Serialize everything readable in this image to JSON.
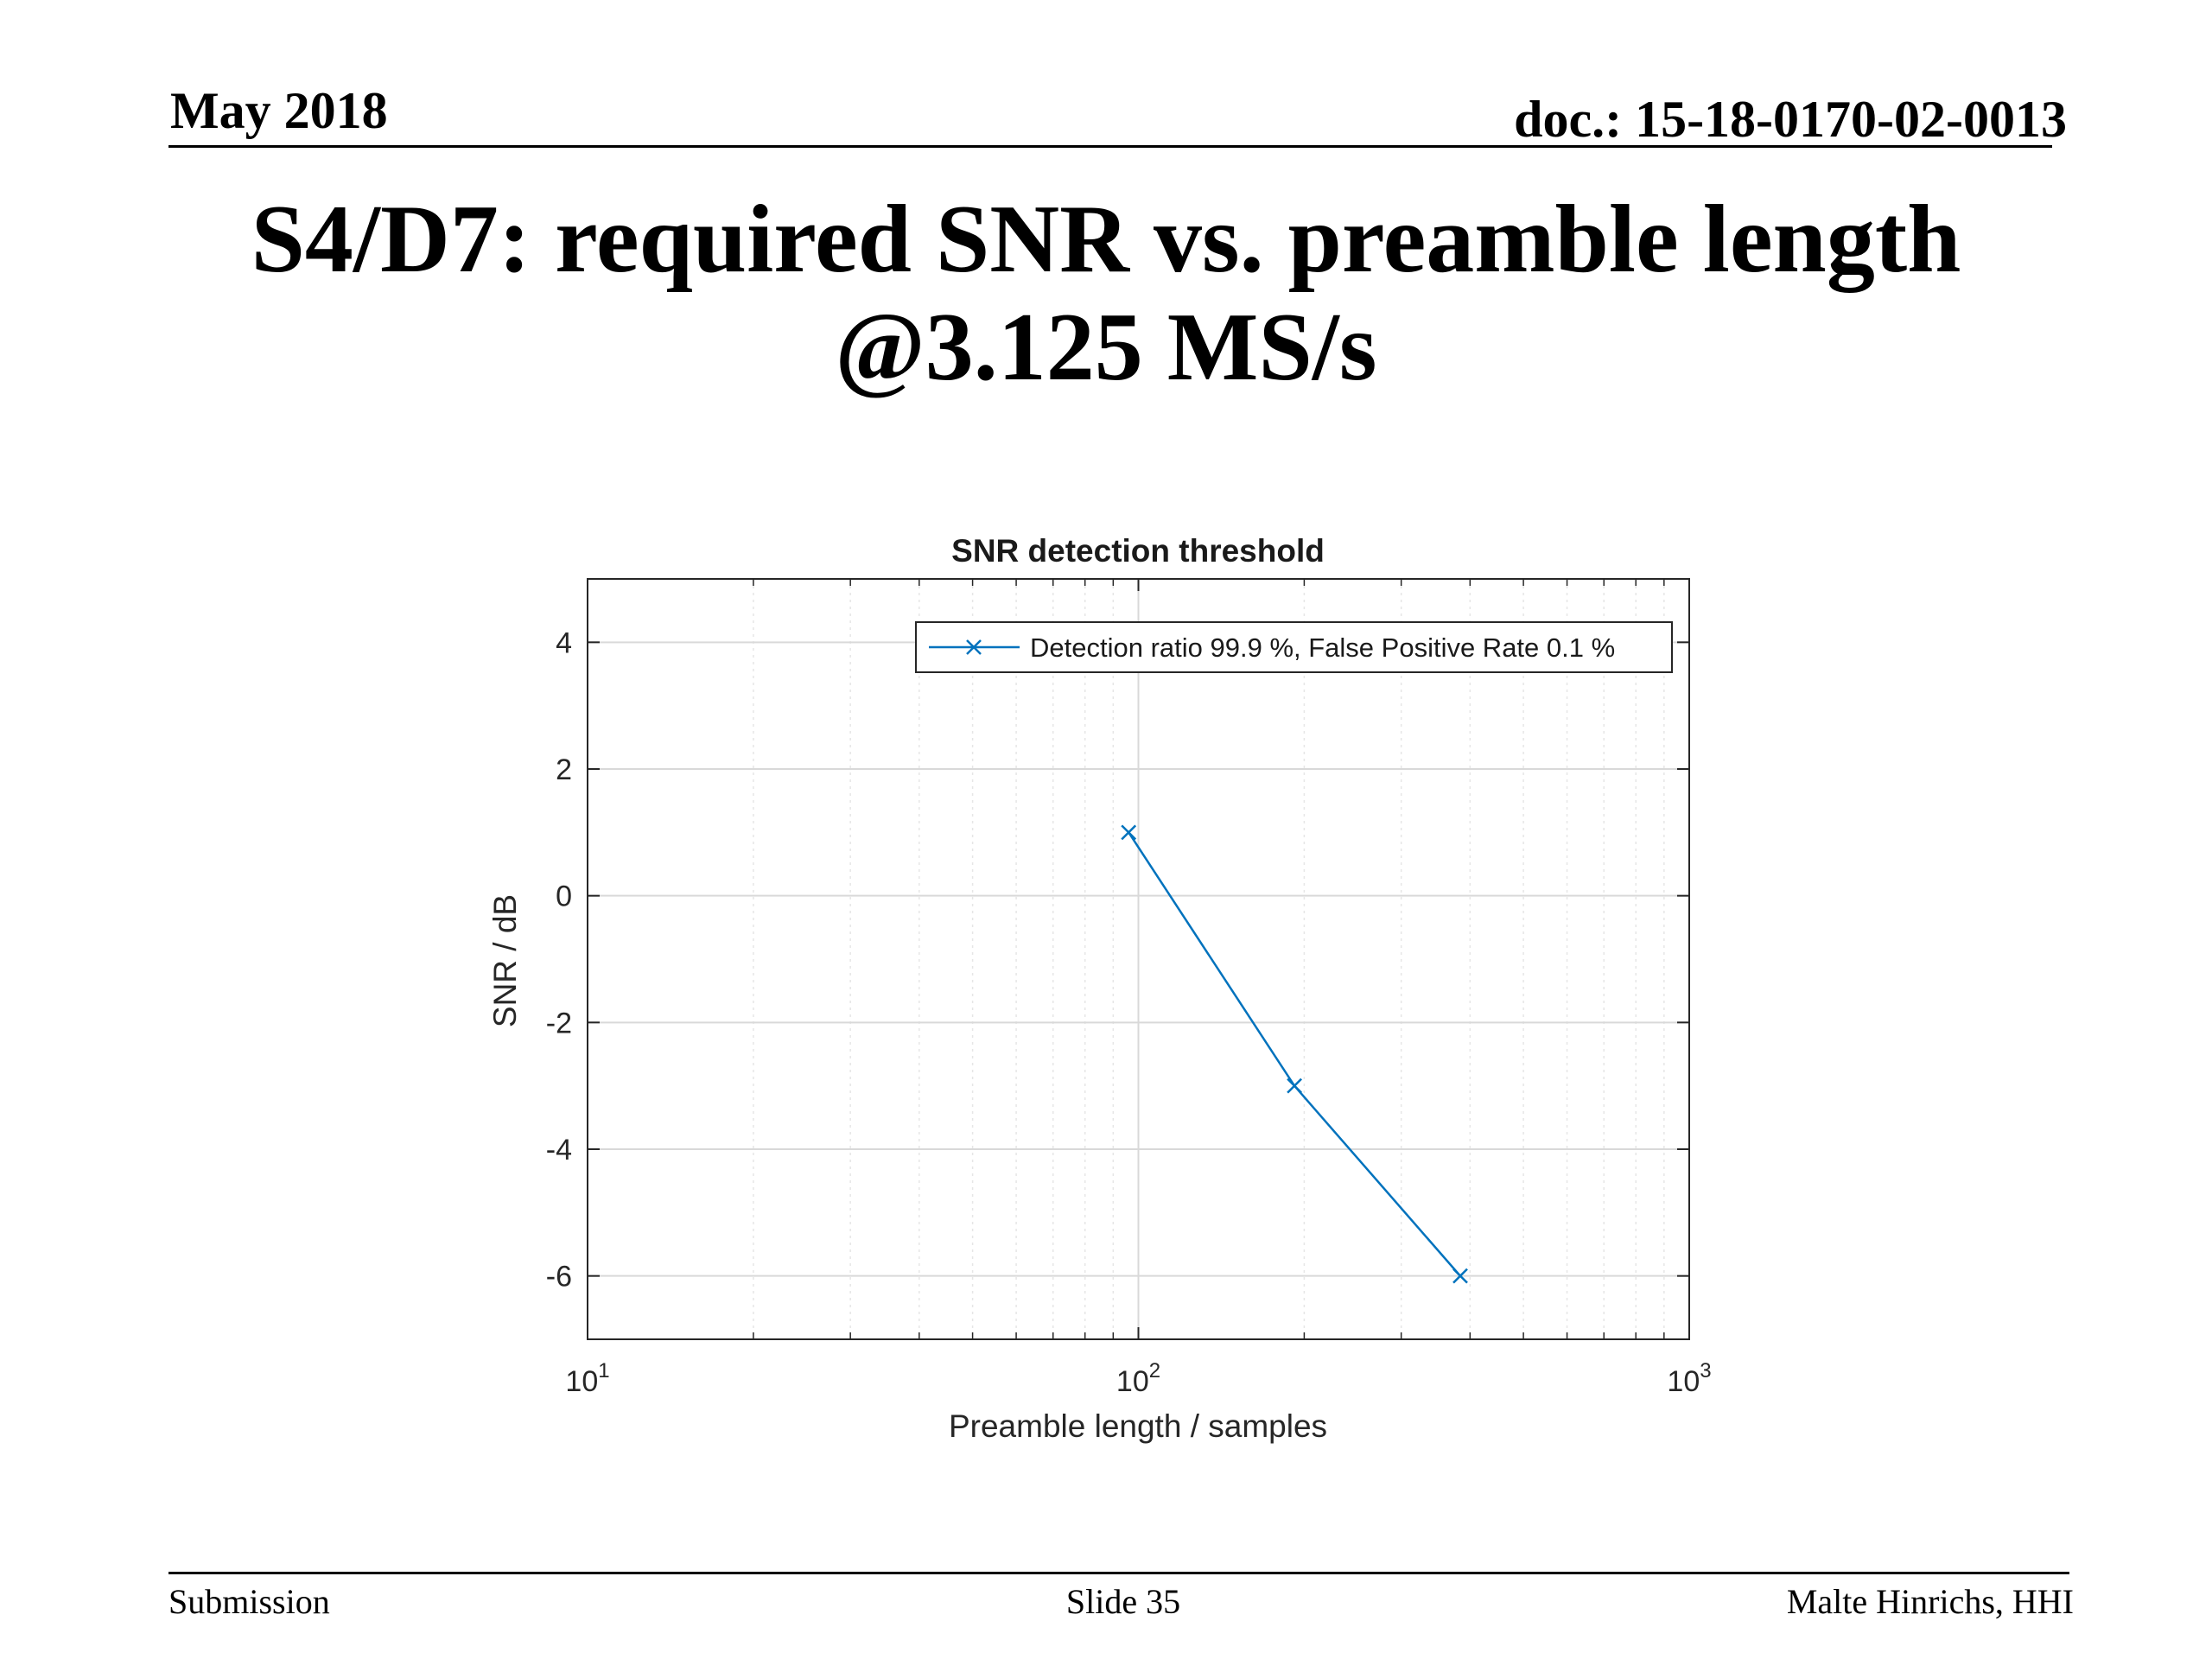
{
  "header": {
    "date": "May 2018",
    "doc": "doc.: 15-18-0170-02-0013"
  },
  "slide_title": "S4/D7: required SNR vs. preamble length @3.125 MS/s",
  "footer": {
    "left": "Submission",
    "center": "Slide 35",
    "right": "Malte Hinrichs, HHI"
  },
  "colors": {
    "series": "#0072BD",
    "grid_major": "#d9d9d9",
    "grid_minor": "#e6e6e6",
    "axes": "#262626",
    "text": "#262626"
  },
  "chart_data": {
    "type": "line",
    "title": "SNR detection threshold",
    "xlabel": "Preamble length / samples",
    "ylabel": "SNR / dB",
    "x_scale": "log",
    "xlim": [
      10,
      1000
    ],
    "ylim": [
      -7,
      5
    ],
    "x_ticks": [
      {
        "base": "10",
        "exp": "1",
        "value": 10
      },
      {
        "base": "10",
        "exp": "2",
        "value": 100
      },
      {
        "base": "10",
        "exp": "3",
        "value": 1000
      }
    ],
    "y_ticks": [
      {
        "value": 4,
        "label": "4"
      },
      {
        "value": 2,
        "label": "2"
      },
      {
        "value": 0,
        "label": "0"
      },
      {
        "value": -2,
        "label": "-2"
      },
      {
        "value": -4,
        "label": "-4"
      },
      {
        "value": -6,
        "label": "-6"
      }
    ],
    "grid": true,
    "minor_grid": true,
    "legend_position": "top-right",
    "series": [
      {
        "name": "Detection ratio 99.9 %, False Positive Rate 0.1 %",
        "marker": "x",
        "x": [
          96,
          192,
          384
        ],
        "y": [
          1,
          -3,
          -6
        ]
      }
    ]
  }
}
